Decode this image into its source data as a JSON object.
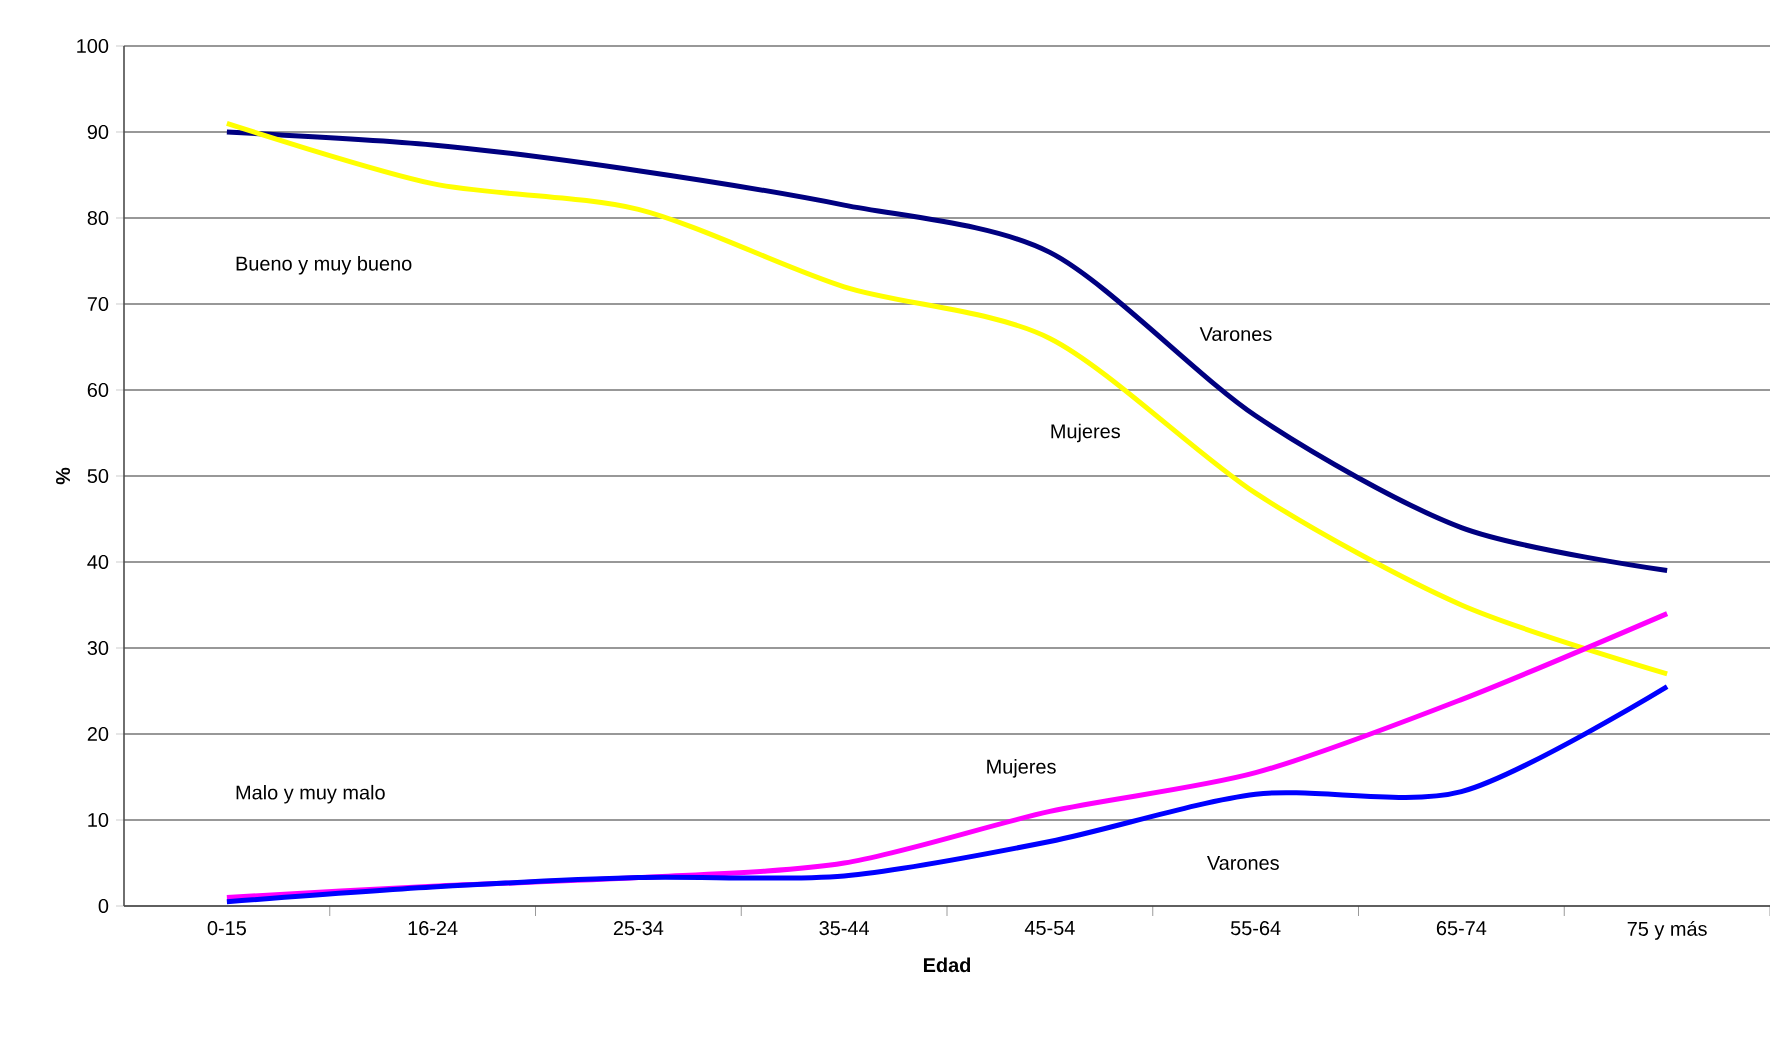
{
  "chart_data": {
    "type": "line",
    "xlabel": "Edad",
    "ylabel": "%",
    "categories": [
      "0-15",
      "16-24",
      "25-34",
      "35-44",
      "45-54",
      "55-64",
      "65-74",
      "75 y más"
    ],
    "series": [
      {
        "name": "Varones",
        "color": "#000080",
        "values": [
          90,
          88.5,
          85.5,
          81.5,
          76,
          57,
          44,
          39
        ]
      },
      {
        "name": "Mujeres",
        "color": "#ffff00",
        "values": [
          91,
          84,
          81,
          72,
          66,
          48,
          35,
          27
        ]
      },
      {
        "name": "Mujeres",
        "color": "#ff00ff",
        "values": [
          1,
          2.3,
          3.3,
          5,
          11,
          15.5,
          24,
          34
        ]
      },
      {
        "name": "Varones",
        "color": "#0000ff",
        "values": [
          0.5,
          2.2,
          3.3,
          3.5,
          7.5,
          13,
          13.3,
          25.5
        ]
      }
    ],
    "ylim": [
      0,
      100
    ],
    "yticks": [
      0,
      10,
      20,
      30,
      40,
      50,
      60,
      70,
      80,
      90,
      100
    ],
    "grid": "y",
    "marker": "none",
    "line_style": "solid",
    "annotations": [
      "Bueno y muy bueno",
      "Malo y muy malo"
    ]
  }
}
